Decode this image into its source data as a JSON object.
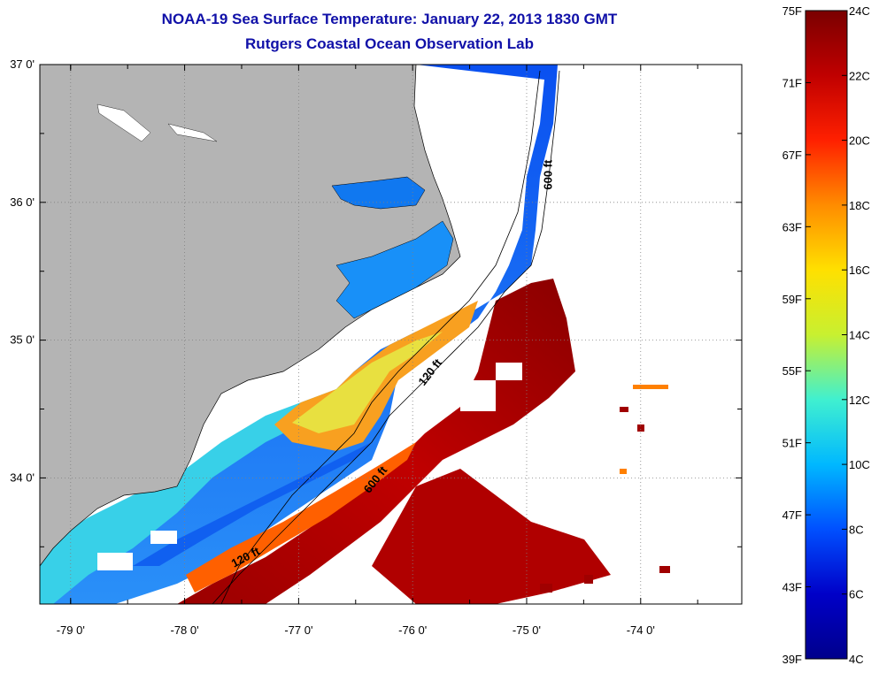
{
  "title": "NOAA-19 Sea Surface Temperature:  January 22, 2013 1830 GMT",
  "subtitle": "Rutgers Coastal Ocean Observation Lab",
  "map": {
    "lat_ticks": [
      {
        "value": 37,
        "label": "37 0'"
      },
      {
        "value": 36,
        "label": "36 0'"
      },
      {
        "value": 35,
        "label": "35 0'"
      },
      {
        "value": 34,
        "label": "34 0'"
      }
    ],
    "lon_ticks": [
      {
        "value": -79,
        "label": "-79 0'"
      },
      {
        "value": -78,
        "label": "-78 0'"
      },
      {
        "value": -77,
        "label": "-77 0'"
      },
      {
        "value": -76,
        "label": "-76 0'"
      },
      {
        "value": -75,
        "label": "-75 0'"
      },
      {
        "value": -74,
        "label": "-74 0'"
      }
    ],
    "contour_labels": [
      {
        "text": "600 ft",
        "lon": -74.78,
        "lat": 36.2
      },
      {
        "text": "120 ft",
        "lon": -75.82,
        "lat": 34.75
      },
      {
        "text": "600 ft",
        "lon": -76.3,
        "lat": 33.97
      },
      {
        "text": "120 ft",
        "lon": -77.45,
        "lat": 33.4
      }
    ],
    "land_color": "#b4b4b4",
    "no_data_color": "#ffffff"
  },
  "colorbar": {
    "fahrenheit_labels": [
      "75F",
      "71F",
      "67F",
      "63F",
      "59F",
      "55F",
      "51F",
      "47F",
      "43F",
      "39F"
    ],
    "celsius_labels": [
      "24C",
      "22C",
      "20C",
      "18C",
      "16C",
      "14C",
      "12C",
      "10C",
      "8C",
      "6C",
      "4C"
    ],
    "range_celsius": [
      4,
      24
    ],
    "colors": [
      "#7a0000",
      "#c00000",
      "#ff2000",
      "#ff8c00",
      "#ffe000",
      "#c8f030",
      "#40f0d0",
      "#00b8ff",
      "#0050ff",
      "#0000c8",
      "#00008c"
    ]
  }
}
